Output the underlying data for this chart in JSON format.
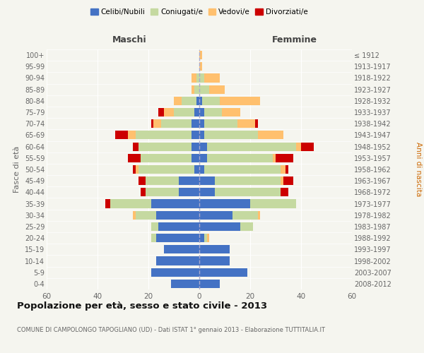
{
  "age_groups": [
    "0-4",
    "5-9",
    "10-14",
    "15-19",
    "20-24",
    "25-29",
    "30-34",
    "35-39",
    "40-44",
    "45-49",
    "50-54",
    "55-59",
    "60-64",
    "65-69",
    "70-74",
    "75-79",
    "80-84",
    "85-89",
    "90-94",
    "95-99",
    "100+"
  ],
  "birth_years": [
    "2008-2012",
    "2003-2007",
    "1998-2002",
    "1993-1997",
    "1988-1992",
    "1983-1987",
    "1978-1982",
    "1973-1977",
    "1968-1972",
    "1963-1967",
    "1958-1962",
    "1953-1957",
    "1948-1952",
    "1943-1947",
    "1938-1942",
    "1933-1937",
    "1928-1932",
    "1923-1927",
    "1918-1922",
    "1913-1917",
    "≤ 1912"
  ],
  "maschi": {
    "celibi": [
      11,
      19,
      17,
      14,
      17,
      16,
      17,
      19,
      8,
      8,
      2,
      3,
      3,
      3,
      3,
      2,
      1,
      0,
      0,
      0,
      0
    ],
    "coniugati": [
      0,
      0,
      0,
      0,
      2,
      3,
      8,
      16,
      13,
      13,
      22,
      20,
      21,
      22,
      12,
      8,
      6,
      2,
      1,
      0,
      0
    ],
    "vedovi": [
      0,
      0,
      0,
      0,
      0,
      0,
      1,
      0,
      0,
      0,
      1,
      0,
      0,
      3,
      3,
      4,
      3,
      1,
      2,
      0,
      0
    ],
    "divorziati": [
      0,
      0,
      0,
      0,
      0,
      0,
      0,
      2,
      2,
      3,
      1,
      5,
      2,
      5,
      1,
      2,
      0,
      0,
      0,
      0,
      0
    ]
  },
  "femmine": {
    "nubili": [
      8,
      19,
      12,
      12,
      2,
      16,
      13,
      20,
      6,
      6,
      2,
      3,
      3,
      2,
      2,
      2,
      1,
      0,
      0,
      0,
      0
    ],
    "coniugate": [
      0,
      0,
      0,
      0,
      1,
      5,
      10,
      18,
      26,
      26,
      30,
      26,
      35,
      21,
      13,
      7,
      7,
      4,
      2,
      0,
      0
    ],
    "vedove": [
      0,
      0,
      0,
      0,
      1,
      0,
      1,
      0,
      0,
      1,
      2,
      1,
      2,
      10,
      7,
      7,
      16,
      6,
      6,
      1,
      1
    ],
    "divorziate": [
      0,
      0,
      0,
      0,
      0,
      0,
      0,
      0,
      3,
      4,
      1,
      7,
      5,
      0,
      1,
      0,
      0,
      0,
      0,
      0,
      0
    ]
  },
  "colors": {
    "celibi": "#4472c4",
    "coniugati": "#c5d9a0",
    "vedovi": "#ffc06e",
    "divorziati": "#cc0000"
  },
  "title": "Popolazione per età, sesso e stato civile - 2013",
  "subtitle": "COMUNE DI CAMPOLONGO TAPOGLIANO (UD) - Dati ISTAT 1° gennaio 2013 - Elaborazione TUTTITALIA.IT",
  "xlabel_left": "Maschi",
  "xlabel_right": "Femmine",
  "ylabel_left": "Fasce di età",
  "ylabel_right": "Anni di nascita",
  "xlim": 60,
  "legend_labels": [
    "Celibi/Nubili",
    "Coniugati/e",
    "Vedovi/e",
    "Divorziati/e"
  ],
  "bg_color": "#f5f5ef",
  "bar_height": 0.75
}
